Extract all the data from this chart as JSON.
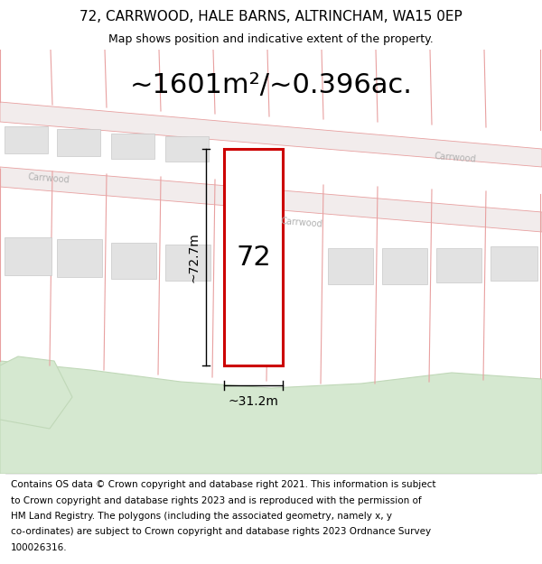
{
  "title_line1": "72, CARRWOOD, HALE BARNS, ALTRINCHAM, WA15 0EP",
  "title_line2": "Map shows position and indicative extent of the property.",
  "area_text": "~1601m²/~0.396ac.",
  "label_72": "72",
  "dim_vertical": "~72.7m",
  "dim_horizontal": "~31.2m",
  "footer_lines": [
    "Contains OS data © Crown copyright and database right 2021. This information is subject",
    "to Crown copyright and database rights 2023 and is reproduced with the permission of",
    "HM Land Registry. The polygons (including the associated geometry, namely x, y",
    "co-ordinates) are subject to Crown copyright and database rights 2023 Ordnance Survey",
    "100026316."
  ],
  "bg_color": "#ffffff",
  "map_bg": "#faf5f5",
  "plot_outline_color": "#cc0000",
  "plot_fill_color": "#ffffff",
  "building_fill": "#e2e2e2",
  "building_edge": "#c8c8c8",
  "road_line_color": "#e8a0a0",
  "parcel_line_color": "#e8a0a0",
  "green_fill": "#d5e8d0",
  "green_edge": "#c0d8b8",
  "road_label_color": "#b0b0b0",
  "title_fontsize": 11,
  "subtitle_fontsize": 9,
  "area_fontsize": 22,
  "dim_fontsize": 10,
  "label72_fontsize": 22,
  "footer_fontsize": 7.5,
  "road_label_fontsize": 7
}
